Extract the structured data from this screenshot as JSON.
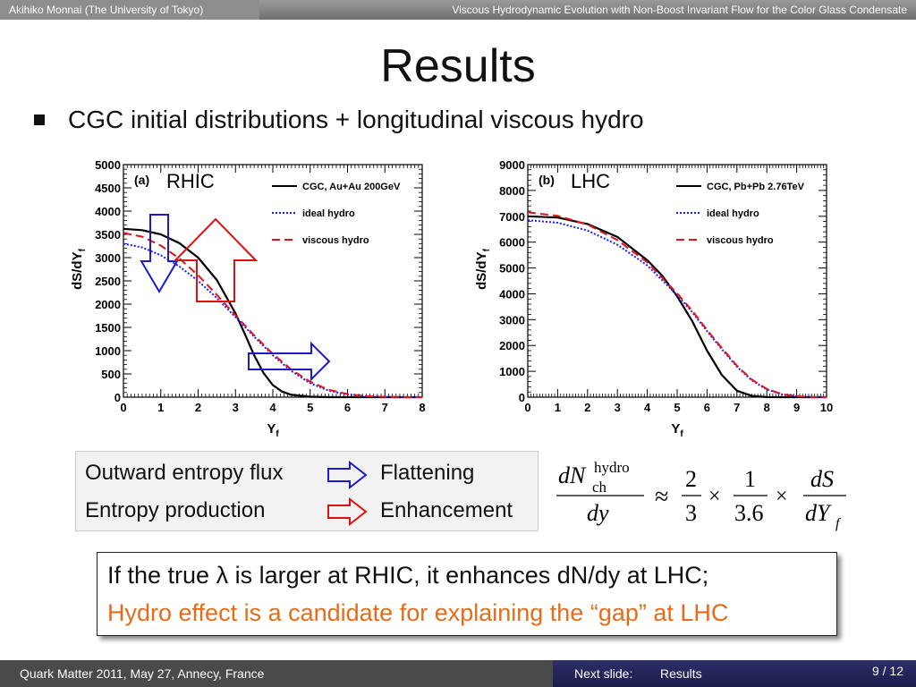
{
  "header": {
    "author": "Akihiko Monnai (The University of Tokyo)",
    "talk_title": "Viscous Hydrodynamic Evolution with Non-Boost Invariant Flow for the Color Glass Condensate"
  },
  "slide": {
    "title": "Results",
    "bullet": "CGC initial distributions + longitudinal viscous hydro"
  },
  "colors": {
    "cgc": "#000000",
    "ideal": "#1a1aff",
    "viscous": "#e0141e",
    "arrow_blue": "#1a1acc",
    "arrow_red": "#dd1111",
    "orange_text": "#e46c1a"
  },
  "chart_data": [
    {
      "type": "line",
      "panel_label": "(a)",
      "collider_label": "RHIC",
      "xlabel": "Y",
      "xlabel_sub": "f",
      "ylabel": "dS/dY",
      "ylabel_sub": "f",
      "xlim": [
        0,
        8
      ],
      "ylim": [
        0,
        5000
      ],
      "xticks": [
        0,
        1,
        2,
        3,
        4,
        5,
        6,
        7,
        8
      ],
      "yticks": [
        0,
        500,
        1000,
        1500,
        2000,
        2500,
        3000,
        3500,
        4000,
        4500,
        5000
      ],
      "series": [
        {
          "name": "CGC, Au+Au 200GeV",
          "style": "solid",
          "color": "#000000",
          "x": [
            0,
            0.5,
            1,
            1.5,
            2,
            2.5,
            3,
            3.25,
            3.5,
            3.75,
            4,
            4.25,
            4.5,
            5,
            5.5,
            6,
            6.5,
            7,
            7.5,
            8
          ],
          "y": [
            3620,
            3590,
            3500,
            3310,
            3000,
            2520,
            1800,
            1360,
            900,
            520,
            260,
            120,
            50,
            10,
            0,
            0,
            0,
            0,
            0,
            0
          ]
        },
        {
          "name": "ideal hydro",
          "style": "dotted",
          "color": "#1a1aff",
          "x": [
            0,
            0.5,
            1,
            1.5,
            2,
            2.5,
            3,
            3.5,
            4,
            4.5,
            5,
            5.5,
            6,
            6.5,
            7,
            7.5,
            8
          ],
          "y": [
            3300,
            3220,
            3050,
            2810,
            2500,
            2130,
            1720,
            1300,
            900,
            560,
            300,
            140,
            55,
            18,
            5,
            0,
            0
          ]
        },
        {
          "name": "viscous hydro",
          "style": "dashed",
          "color": "#e0141e",
          "x": [
            0,
            0.5,
            1,
            1.5,
            2,
            2.5,
            3,
            3.5,
            4,
            4.5,
            5,
            5.5,
            6,
            6.5,
            7,
            7.5,
            8
          ],
          "y": [
            3530,
            3450,
            3260,
            2980,
            2620,
            2200,
            1760,
            1330,
            930,
            590,
            330,
            160,
            65,
            22,
            6,
            0,
            0
          ]
        }
      ]
    },
    {
      "type": "line",
      "panel_label": "(b)",
      "collider_label": "LHC",
      "xlabel": "Y",
      "xlabel_sub": "f",
      "ylabel": "dS/dY",
      "ylabel_sub": "f",
      "xlim": [
        0,
        10
      ],
      "ylim": [
        0,
        9000
      ],
      "xticks": [
        0,
        1,
        2,
        3,
        4,
        5,
        6,
        7,
        8,
        9,
        10
      ],
      "yticks": [
        0,
        1000,
        2000,
        3000,
        4000,
        5000,
        6000,
        7000,
        8000,
        9000
      ],
      "series": [
        {
          "name": "CGC, Pb+Pb 2.76TeV",
          "style": "solid",
          "color": "#000000",
          "x": [
            0,
            1,
            2,
            3,
            4,
            4.5,
            5,
            5.5,
            6,
            6.5,
            7,
            7.5,
            8,
            8.5,
            9,
            9.5,
            10
          ],
          "y": [
            7000,
            6950,
            6700,
            6200,
            5300,
            4700,
            3900,
            2950,
            1800,
            850,
            250,
            50,
            5,
            0,
            0,
            0,
            0
          ]
        },
        {
          "name": "ideal hydro",
          "style": "dotted",
          "color": "#1a1aff",
          "x": [
            0,
            1,
            2,
            3,
            4,
            5,
            5.5,
            6,
            6.5,
            7,
            7.5,
            8,
            8.5,
            9,
            9.5,
            10
          ],
          "y": [
            6850,
            6750,
            6450,
            5900,
            5100,
            3950,
            3300,
            2550,
            1850,
            1180,
            650,
            300,
            110,
            30,
            5,
            0
          ]
        },
        {
          "name": "viscous hydro",
          "style": "dashed",
          "color": "#e0141e",
          "x": [
            0,
            1,
            2,
            3,
            4,
            5,
            5.5,
            6,
            6.5,
            7,
            7.5,
            8,
            8.5,
            9,
            9.5,
            10
          ],
          "y": [
            7150,
            7020,
            6680,
            6080,
            5220,
            4020,
            3350,
            2600,
            1900,
            1220,
            680,
            320,
            120,
            35,
            6,
            0
          ]
        }
      ]
    }
  ],
  "legend_box": {
    "row1_left": "Outward entropy flux",
    "row1_right": "Flattening",
    "row2_left": "Entropy production",
    "row2_right": "Enhancement"
  },
  "formula": {
    "lhs_num": "dN",
    "lhs_sup": "hydro",
    "lhs_sub": "ch",
    "lhs_den": "dy",
    "approx": "≈",
    "f1_num": "2",
    "f1_den": "3",
    "times": "×",
    "f2_num": "1",
    "f2_den": "3.6",
    "f3_num": "dS",
    "f3_den": "dY",
    "f3_den_sub": "f"
  },
  "callout": {
    "line1": "If the true λ is larger at RHIC, it enhances dN/dy at LHC;",
    "line2": "Hydro effect is a candidate for explaining the “gap” at LHC"
  },
  "footer": {
    "conference": "Quark Matter 2011, May 27, Annecy, France",
    "next_label": "Next slide:",
    "next_title": "Results",
    "page": "9 / 12"
  }
}
